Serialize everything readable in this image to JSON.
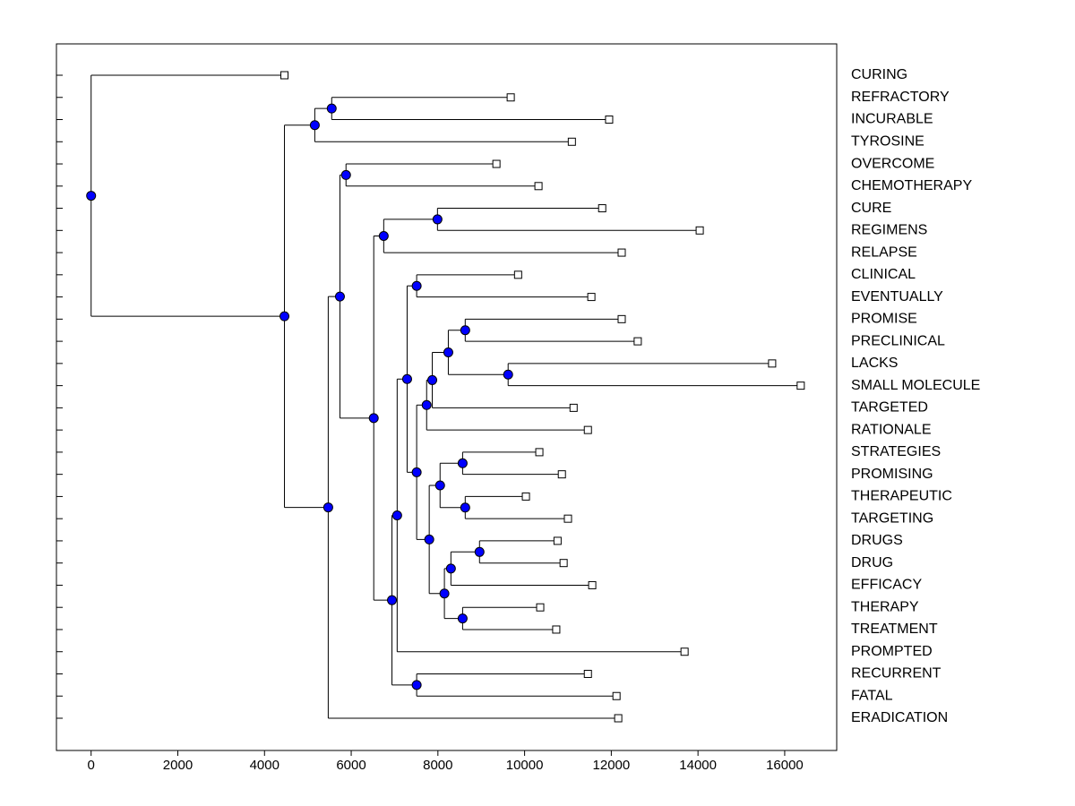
{
  "chart_data": {
    "type": "dendrogram",
    "xlim": [
      -800,
      17200
    ],
    "xticks": [
      0,
      2000,
      4000,
      6000,
      8000,
      10000,
      12000,
      14000,
      16000
    ],
    "node_color": "#0000ff",
    "leaf_color": "#ffffff",
    "leaves": [
      {
        "label": "CURING",
        "value": 4460
      },
      {
        "label": "REFRACTORY",
        "value": 9680
      },
      {
        "label": "INCURABLE",
        "value": 11950
      },
      {
        "label": "TYROSINE",
        "value": 11090
      },
      {
        "label": "OVERCOME",
        "value": 9350
      },
      {
        "label": "CHEMOTHERAPY",
        "value": 10320
      },
      {
        "label": "CURE",
        "value": 11790
      },
      {
        "label": "REGIMENS",
        "value": 14040
      },
      {
        "label": "RELAPSE",
        "value": 12240
      },
      {
        "label": "CLINICAL",
        "value": 9850
      },
      {
        "label": "EVENTUALLY",
        "value": 11540
      },
      {
        "label": "PROMISE",
        "value": 12240
      },
      {
        "label": "PRECLINICAL",
        "value": 12610
      },
      {
        "label": "LACKS",
        "value": 15710
      },
      {
        "label": "SMALL MOLECULE",
        "value": 16370
      },
      {
        "label": "TARGETED",
        "value": 11130
      },
      {
        "label": "RATIONALE",
        "value": 11460
      },
      {
        "label": "STRATEGIES",
        "value": 10340
      },
      {
        "label": "PROMISING",
        "value": 10860
      },
      {
        "label": "THERAPEUTIC",
        "value": 10030
      },
      {
        "label": "TARGETING",
        "value": 11000
      },
      {
        "label": "DRUGS",
        "value": 10760
      },
      {
        "label": "DRUG",
        "value": 10900
      },
      {
        "label": "EFFICACY",
        "value": 11560
      },
      {
        "label": "THERAPY",
        "value": 10360
      },
      {
        "label": "TREATMENT",
        "value": 10730
      },
      {
        "label": "PROMPTED",
        "value": 13690
      },
      {
        "label": "RECURRENT",
        "value": 11460
      },
      {
        "label": "FATAL",
        "value": 12120
      },
      {
        "label": "ERADICATION",
        "value": 12160
      }
    ],
    "nodes": [
      {
        "value": 0,
        "children": [
          {
            "leaf": 0
          },
          {
            "node": 1
          }
        ]
      },
      {
        "value": 4460,
        "children": [
          {
            "node": 2
          },
          {
            "node": 4
          }
        ]
      },
      {
        "value": 5160,
        "children": [
          {
            "node": 3
          },
          {
            "leaf": 3
          }
        ]
      },
      {
        "value": 5550,
        "children": [
          {
            "leaf": 1
          },
          {
            "leaf": 2
          }
        ]
      },
      {
        "value": 5470,
        "children": [
          {
            "node": 5
          },
          {
            "leaf": 29
          }
        ]
      },
      {
        "value": 5740,
        "children": [
          {
            "node": 6
          },
          {
            "node": 7
          }
        ]
      },
      {
        "value": 5880,
        "children": [
          {
            "leaf": 4
          },
          {
            "leaf": 5
          }
        ]
      },
      {
        "value": 6520,
        "children": [
          {
            "node": 8
          },
          {
            "node": 10
          }
        ]
      },
      {
        "value": 6750,
        "children": [
          {
            "node": 9
          },
          {
            "leaf": 8
          }
        ]
      },
      {
        "value": 7990,
        "children": [
          {
            "leaf": 6
          },
          {
            "leaf": 7
          }
        ]
      },
      {
        "value": 6940,
        "children": [
          {
            "node": 11
          },
          {
            "node": 25
          }
        ]
      },
      {
        "value": 7060,
        "children": [
          {
            "node": 12
          },
          {
            "leaf": 26
          }
        ]
      },
      {
        "value": 7290,
        "children": [
          {
            "node": 13
          },
          {
            "node": 14
          }
        ]
      },
      {
        "value": 7510,
        "children": [
          {
            "leaf": 9
          },
          {
            "leaf": 10
          }
        ]
      },
      {
        "value": 7510,
        "children": [
          {
            "node": 15
          },
          {
            "node": 20
          }
        ]
      },
      {
        "value": 7740,
        "children": [
          {
            "node": 16
          },
          {
            "leaf": 16
          }
        ]
      },
      {
        "value": 7870,
        "children": [
          {
            "node": 17
          },
          {
            "leaf": 15
          }
        ]
      },
      {
        "value": 8240,
        "children": [
          {
            "node": 18
          },
          {
            "node": 19
          }
        ]
      },
      {
        "value": 8630,
        "children": [
          {
            "leaf": 11
          },
          {
            "leaf": 12
          }
        ]
      },
      {
        "value": 9620,
        "children": [
          {
            "leaf": 13
          },
          {
            "leaf": 14
          }
        ]
      },
      {
        "value": 7800,
        "children": [
          {
            "node": 21
          },
          {
            "node": 24
          }
        ]
      },
      {
        "value": 8050,
        "children": [
          {
            "node": 22
          },
          {
            "node": 23
          }
        ]
      },
      {
        "value": 8570,
        "children": [
          {
            "leaf": 17
          },
          {
            "leaf": 18
          }
        ]
      },
      {
        "value": 8630,
        "children": [
          {
            "leaf": 19
          },
          {
            "leaf": 20
          }
        ]
      },
      {
        "value": 8150,
        "children": [
          {
            "node": 26
          },
          {
            "node": 28
          }
        ]
      },
      {
        "value": 7510,
        "children": [
          {
            "leaf": 27
          },
          {
            "leaf": 28
          }
        ]
      },
      {
        "value": 8300,
        "children": [
          {
            "node": 27
          },
          {
            "leaf": 23
          }
        ]
      },
      {
        "value": 8960,
        "children": [
          {
            "leaf": 21
          },
          {
            "leaf": 22
          }
        ]
      },
      {
        "value": 8570,
        "children": [
          {
            "leaf": 24
          },
          {
            "leaf": 25
          }
        ]
      }
    ]
  }
}
